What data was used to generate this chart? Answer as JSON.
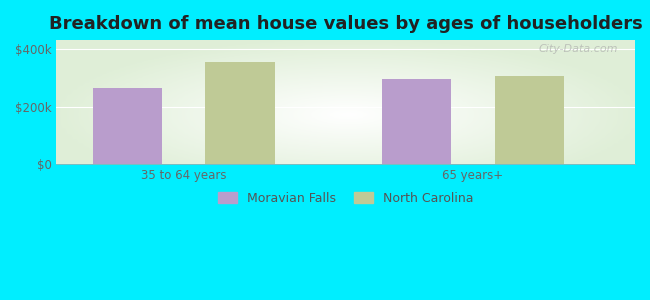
{
  "title": "Breakdown of mean house values by ages of householders",
  "categories": [
    "35 to 64 years",
    "65 years+"
  ],
  "series": {
    "Moravian Falls": [
      265000,
      295000
    ],
    "North Carolina": [
      355000,
      305000
    ]
  },
  "bar_colors": {
    "Moravian Falls": "#b99dcc",
    "North Carolina": "#bfca96"
  },
  "ylim": [
    0,
    430000
  ],
  "yticks": [
    0,
    200000,
    400000
  ],
  "ytick_labels": [
    "$0",
    "$200k",
    "$400k"
  ],
  "background_color": "#00eeff",
  "title_fontsize": 13,
  "legend_fontsize": 9,
  "tick_fontsize": 8.5,
  "bar_width": 0.12,
  "watermark": "City-Data.com"
}
